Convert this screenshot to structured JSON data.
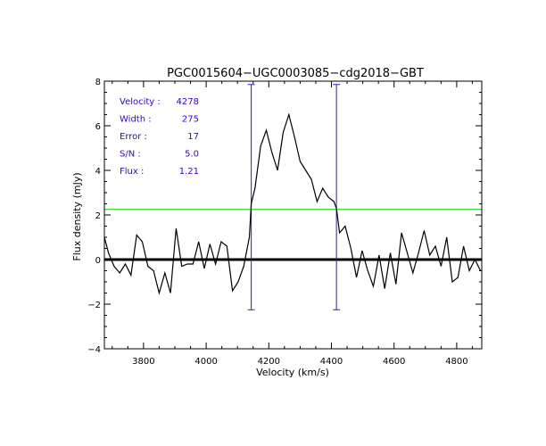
{
  "chart_data": {
    "type": "line",
    "title": "PGC0015604−UGC0003085−cdg2018−GBT",
    "xlabel": "Velocity (km/s)",
    "ylabel": "Flux density (mJy)",
    "xlim": [
      3675,
      4880
    ],
    "ylim": [
      -4,
      8
    ],
    "xticks": [
      3800,
      4000,
      4200,
      4400,
      4600,
      4800
    ],
    "yticks": [
      -4,
      -2,
      0,
      2,
      4,
      6,
      8
    ],
    "xtick_labels": [
      "3800",
      "4000",
      "4200",
      "4400",
      "4600",
      "4800"
    ],
    "ytick_labels": [
      "−4",
      "−2",
      "0",
      "2",
      "4",
      "6",
      "8"
    ],
    "x": [
      3670,
      3688,
      3706,
      3724,
      3742,
      3760,
      3778,
      3796,
      3814,
      3832,
      3850,
      3868,
      3886,
      3904,
      3922,
      3940,
      3958,
      3976,
      3994,
      4012,
      4030,
      4048,
      4066,
      4084,
      4102,
      4120,
      4138,
      4144,
      4156,
      4174,
      4192,
      4210,
      4228,
      4246,
      4264,
      4282,
      4300,
      4318,
      4336,
      4354,
      4372,
      4390,
      4408,
      4416,
      4426,
      4444,
      4462,
      4480,
      4498,
      4516,
      4534,
      4552,
      4570,
      4588,
      4606,
      4624,
      4642,
      4660,
      4678,
      4696,
      4714,
      4732,
      4750,
      4768,
      4786,
      4804,
      4822,
      4840,
      4858,
      4876
    ],
    "values": [
      1.0,
      0.3,
      -0.3,
      -0.6,
      -0.2,
      -0.7,
      1.1,
      0.8,
      -0.3,
      -0.5,
      -1.5,
      -0.6,
      -1.5,
      1.4,
      -0.3,
      -0.2,
      -0.2,
      0.8,
      -0.4,
      0.7,
      -0.2,
      0.8,
      0.6,
      -1.4,
      -1.0,
      -0.3,
      1.0,
      2.5,
      3.2,
      5.1,
      5.8,
      4.8,
      4.0,
      5.7,
      6.5,
      5.5,
      4.4,
      4.0,
      3.6,
      2.6,
      3.2,
      2.8,
      2.6,
      2.3,
      1.2,
      1.5,
      0.5,
      -0.8,
      0.4,
      -0.5,
      -1.2,
      0.2,
      -1.3,
      0.3,
      -1.1,
      1.2,
      0.3,
      -0.6,
      0.3,
      1.3,
      0.2,
      0.6,
      -0.3,
      1.0,
      -1.0,
      -0.8,
      0.6,
      -0.5,
      0.0,
      -0.5
    ],
    "baseline": 0,
    "reference_level": 2.25,
    "velocity_markers": [
      4144,
      4416
    ],
    "marker_range": [
      -2.25,
      7.85
    ],
    "annotations": [
      {
        "label": "Velocity :",
        "value": "4278"
      },
      {
        "label": "Width :",
        "value": "275"
      },
      {
        "label": "Error :",
        "value": "17"
      },
      {
        "label": "S/N :",
        "value": "5.0"
      },
      {
        "label": "Flux :",
        "value": "1.21"
      }
    ],
    "colors": {
      "spectrum": "#000000",
      "baseline": "#000000",
      "reference_level": "#00c800",
      "markers": "#2020c0",
      "annotations": "#3a00c8",
      "axes": "#000000"
    }
  }
}
